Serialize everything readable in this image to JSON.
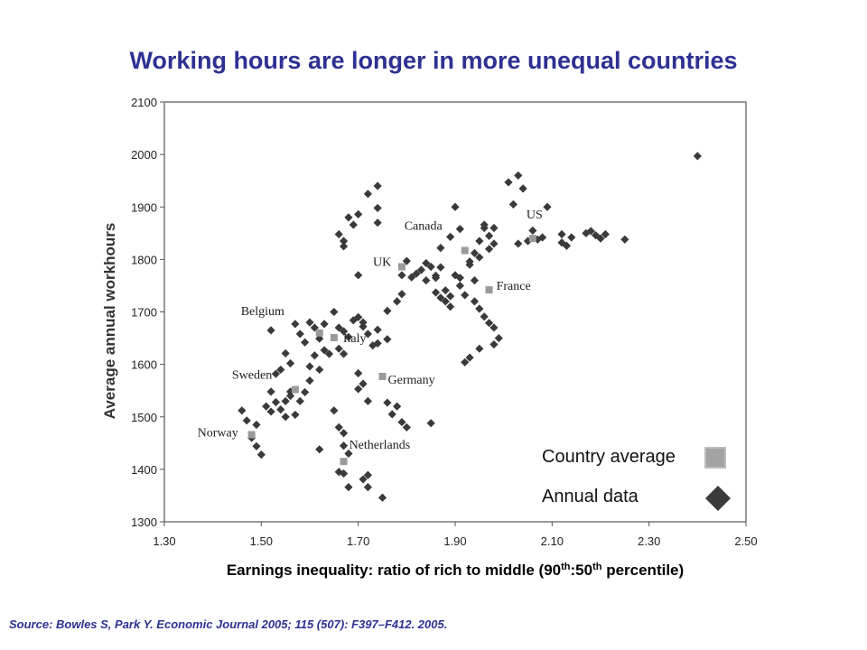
{
  "title": "Working hours are longer in more unequal countries",
  "source": "Source: Bowles S, Park Y. Economic Journal 2005; 115 (507): F397–F412. 2005.",
  "chart_data": {
    "type": "scatter",
    "xlabel_parts": [
      "Earnings inequality: ratio of rich to middle (90",
      "th",
      ":50",
      "th",
      " percentile)"
    ],
    "ylabel": "Average annual workhours",
    "xlim": [
      1.3,
      2.5
    ],
    "ylim": [
      1300,
      2100
    ],
    "x_ticks": [
      "1.30",
      "1.50",
      "1.70",
      "1.90",
      "2.10",
      "2.30",
      "2.50"
    ],
    "y_ticks": [
      "1300",
      "1400",
      "1500",
      "1600",
      "1700",
      "1800",
      "1900",
      "2000",
      "2100"
    ],
    "grid": false,
    "legend": {
      "placement": "bottom-right",
      "items": [
        {
          "label": "Country average",
          "marker": "square"
        },
        {
          "label": "Annual data",
          "marker": "diamond"
        }
      ]
    },
    "colors": {
      "annual": "#3a3a3a",
      "average": "#9a9a9a",
      "axis": "#555555"
    },
    "series": [
      {
        "name": "Country average",
        "points": [
          {
            "x": 1.48,
            "y": 1466,
            "label": "Norway"
          },
          {
            "x": 1.57,
            "y": 1552,
            "label": "Sweden"
          },
          {
            "x": 1.62,
            "y": 1660,
            "label": "Belgium"
          },
          {
            "x": 1.65,
            "y": 1651,
            "label": "Italy"
          },
          {
            "x": 1.67,
            "y": 1415,
            "label": "Netherlands"
          },
          {
            "x": 1.75,
            "y": 1577,
            "label": "Germany"
          },
          {
            "x": 1.79,
            "y": 1786,
            "label": "UK"
          },
          {
            "x": 1.92,
            "y": 1817,
            "label": "Canada"
          },
          {
            "x": 2.06,
            "y": 1840,
            "label": "US"
          },
          {
            "x": 1.97,
            "y": 1742,
            "label": "France"
          }
        ]
      },
      {
        "name": "Annual data",
        "points": [
          [
            1.46,
            1512
          ],
          [
            1.47,
            1493
          ],
          [
            1.49,
            1485
          ],
          [
            1.49,
            1444
          ],
          [
            1.5,
            1428
          ],
          [
            1.48,
            1460
          ],
          [
            1.51,
            1520
          ],
          [
            1.52,
            1548
          ],
          [
            1.53,
            1528
          ],
          [
            1.52,
            1510
          ],
          [
            1.54,
            1514
          ],
          [
            1.55,
            1530
          ],
          [
            1.55,
            1500
          ],
          [
            1.53,
            1582
          ],
          [
            1.54,
            1590
          ],
          [
            1.56,
            1602
          ],
          [
            1.55,
            1621
          ],
          [
            1.56,
            1548
          ],
          [
            1.57,
            1504
          ],
          [
            1.56,
            1540
          ],
          [
            1.58,
            1530
          ],
          [
            1.59,
            1547
          ],
          [
            1.6,
            1569
          ],
          [
            1.6,
            1596
          ],
          [
            1.61,
            1617
          ],
          [
            1.62,
            1590
          ],
          [
            1.63,
            1627
          ],
          [
            1.64,
            1620
          ],
          [
            1.62,
            1649
          ],
          [
            1.61,
            1670
          ],
          [
            1.6,
            1680
          ],
          [
            1.57,
            1677
          ],
          [
            1.58,
            1658
          ],
          [
            1.59,
            1642
          ],
          [
            1.63,
            1677
          ],
          [
            1.65,
            1700
          ],
          [
            1.66,
            1670
          ],
          [
            1.67,
            1663
          ],
          [
            1.69,
            1684
          ],
          [
            1.68,
            1652
          ],
          [
            1.66,
            1630
          ],
          [
            1.67,
            1620
          ],
          [
            1.7,
            1690
          ],
          [
            1.71,
            1672
          ],
          [
            1.72,
            1658
          ],
          [
            1.73,
            1636
          ],
          [
            1.74,
            1666
          ],
          [
            1.76,
            1648
          ],
          [
            1.71,
            1680
          ],
          [
            1.74,
            1640
          ],
          [
            1.7,
            1583
          ],
          [
            1.71,
            1563
          ],
          [
            1.7,
            1553
          ],
          [
            1.72,
            1530
          ],
          [
            1.76,
            1527
          ],
          [
            1.77,
            1505
          ],
          [
            1.79,
            1490
          ],
          [
            1.85,
            1488
          ],
          [
            1.78,
            1520
          ],
          [
            1.8,
            1480
          ],
          [
            1.65,
            1512
          ],
          [
            1.66,
            1480
          ],
          [
            1.67,
            1469
          ],
          [
            1.67,
            1445
          ],
          [
            1.68,
            1430
          ],
          [
            1.66,
            1395
          ],
          [
            1.67,
            1392
          ],
          [
            1.68,
            1366
          ],
          [
            1.71,
            1381
          ],
          [
            1.72,
            1389
          ],
          [
            1.72,
            1366
          ],
          [
            1.75,
            1346
          ],
          [
            1.62,
            1438
          ],
          [
            1.52,
            1665
          ],
          [
            1.66,
            1848
          ],
          [
            1.67,
            1835
          ],
          [
            1.68,
            1880
          ],
          [
            1.69,
            1866
          ],
          [
            1.7,
            1886
          ],
          [
            1.67,
            1825
          ],
          [
            1.7,
            1770
          ],
          [
            1.72,
            1925
          ],
          [
            1.74,
            1940
          ],
          [
            1.74,
            1898
          ],
          [
            1.74,
            1870
          ],
          [
            1.76,
            1702
          ],
          [
            1.78,
            1720
          ],
          [
            1.79,
            1734
          ],
          [
            1.79,
            1770
          ],
          [
            1.8,
            1797
          ],
          [
            1.81,
            1766
          ],
          [
            1.82,
            1773
          ],
          [
            1.83,
            1780
          ],
          [
            1.84,
            1793
          ],
          [
            1.85,
            1786
          ],
          [
            1.86,
            1769
          ],
          [
            1.84,
            1760
          ],
          [
            1.86,
            1737
          ],
          [
            1.87,
            1727
          ],
          [
            1.88,
            1741
          ],
          [
            1.89,
            1730
          ],
          [
            1.9,
            1770
          ],
          [
            1.91,
            1750
          ],
          [
            1.92,
            1732
          ],
          [
            1.93,
            1790
          ],
          [
            1.94,
            1812
          ],
          [
            1.95,
            1835
          ],
          [
            1.96,
            1860
          ],
          [
            1.97,
            1845
          ],
          [
            1.98,
            1830
          ],
          [
            1.97,
            1820
          ],
          [
            1.95,
            1804
          ],
          [
            1.93,
            1796
          ],
          [
            1.91,
            1765
          ],
          [
            1.94,
            1760
          ],
          [
            1.94,
            1720
          ],
          [
            1.95,
            1706
          ],
          [
            1.96,
            1691
          ],
          [
            1.97,
            1679
          ],
          [
            1.98,
            1670
          ],
          [
            1.99,
            1650
          ],
          [
            1.98,
            1638
          ],
          [
            1.95,
            1630
          ],
          [
            1.93,
            1613
          ],
          [
            1.92,
            1604
          ],
          [
            1.91,
            1858
          ],
          [
            1.9,
            1900
          ],
          [
            1.87,
            1822
          ],
          [
            1.89,
            1843
          ],
          [
            1.96,
            1866
          ],
          [
            1.98,
            1860
          ],
          [
            2.02,
            1905
          ],
          [
            2.01,
            1947
          ],
          [
            2.03,
            1960
          ],
          [
            2.04,
            1935
          ],
          [
            2.05,
            1835
          ],
          [
            2.06,
            1855
          ],
          [
            2.09,
            1900
          ],
          [
            2.03,
            1830
          ],
          [
            2.07,
            1838
          ],
          [
            2.08,
            1842
          ],
          [
            2.12,
            1832
          ],
          [
            2.12,
            1848
          ],
          [
            2.13,
            1826
          ],
          [
            2.14,
            1842
          ],
          [
            2.17,
            1850
          ],
          [
            2.18,
            1854
          ],
          [
            2.19,
            1846
          ],
          [
            2.2,
            1840
          ],
          [
            2.21,
            1848
          ],
          [
            2.25,
            1838
          ],
          [
            2.4,
            1997
          ],
          [
            1.86,
            1765
          ],
          [
            1.87,
            1785
          ],
          [
            1.88,
            1720
          ],
          [
            1.89,
            1710
          ]
        ]
      }
    ]
  }
}
